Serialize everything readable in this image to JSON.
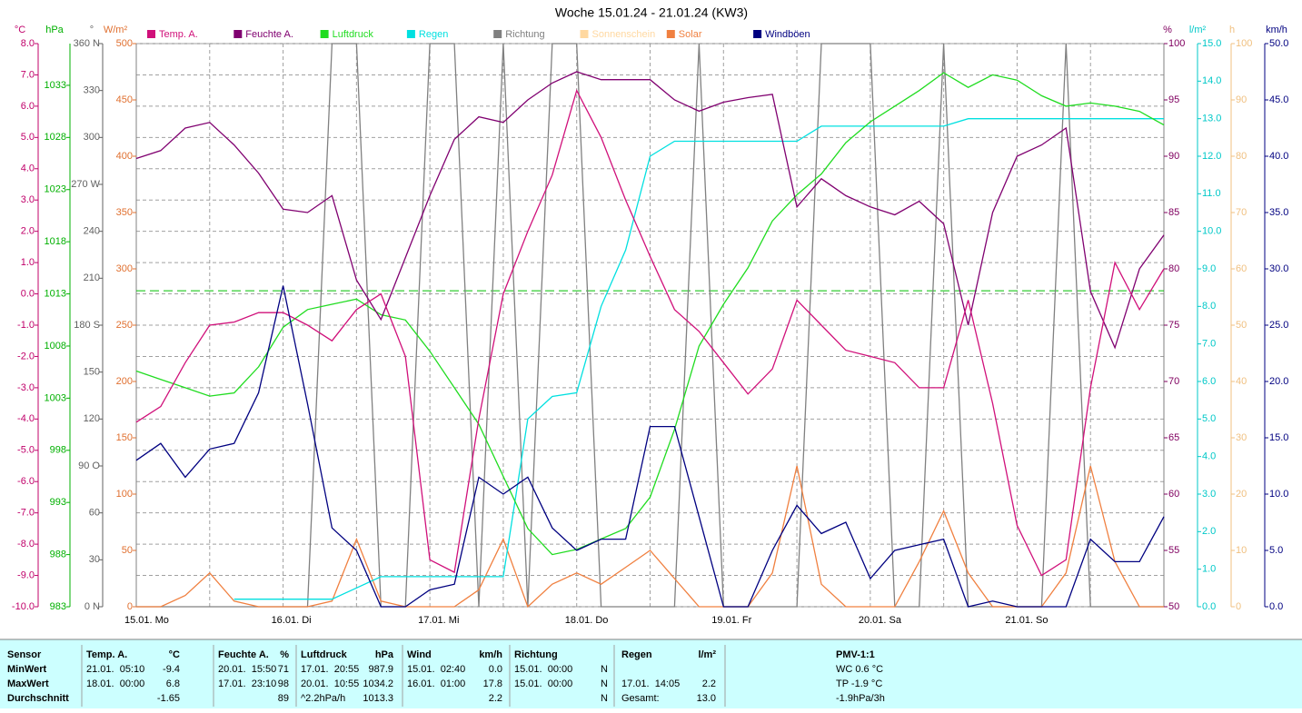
{
  "chart_data": {
    "type": "line",
    "title": "Woche 15.01.24 - 21.01.24 (KW3)",
    "grid": true,
    "categories": [
      "15.01. Mo",
      null,
      null,
      null,
      null,
      null,
      "16.01. Di",
      null,
      null,
      null,
      null,
      null,
      "17.01. Mi",
      null,
      null,
      null,
      null,
      null,
      "18.01. Do",
      null,
      null,
      null,
      null,
      null,
      "19.01. Fr",
      null,
      null,
      null,
      null,
      null,
      "20.01. Sa",
      null,
      null,
      null,
      null,
      null,
      "21.01. So",
      null,
      null,
      null,
      null,
      null,
      null
    ],
    "axes": [
      {
        "label": "°C",
        "color": "#c0006a",
        "lim": [
          -10,
          8
        ],
        "ticks": [
          {
            "value": -10,
            "label": "-10.0"
          },
          {
            "value": -9,
            "label": "-9.0"
          },
          {
            "value": -8,
            "label": "-8.0"
          },
          {
            "value": -7,
            "label": "-7.0"
          },
          {
            "value": -6,
            "label": "-6.0"
          },
          {
            "value": -5,
            "label": "-5.0"
          },
          {
            "value": -4,
            "label": "-4.0"
          },
          {
            "value": -3,
            "label": "-3.0"
          },
          {
            "value": -2,
            "label": "-2.0"
          },
          {
            "value": -1,
            "label": "-1.0"
          },
          {
            "value": 0,
            "label": "0.0"
          },
          {
            "value": 1,
            "label": "1.0"
          },
          {
            "value": 2,
            "label": "2.0"
          },
          {
            "value": 3,
            "label": "3.0"
          },
          {
            "value": 4,
            "label": "4.0"
          },
          {
            "value": 5,
            "label": "5.0"
          },
          {
            "value": 6,
            "label": "6.0"
          },
          {
            "value": 7,
            "label": "7.0"
          },
          {
            "value": 8,
            "label": "8.0"
          }
        ]
      },
      {
        "label": "hPa",
        "color": "#00b000",
        "lim": [
          983,
          1037
        ],
        "ticks": [
          983,
          988,
          993,
          998,
          1003,
          1008,
          1013,
          1018,
          1023,
          1028,
          1033
        ]
      },
      {
        "label": "°",
        "color": "#606060",
        "lim": [
          0,
          360
        ],
        "ticks": [
          {
            "value": 0,
            "label": "0 N"
          },
          30,
          60,
          {
            "value": 90,
            "label": "90 O"
          },
          120,
          150,
          {
            "value": 180,
            "label": "180 S"
          },
          210,
          240,
          {
            "value": 270,
            "label": "270 W"
          },
          300,
          330,
          {
            "value": 360,
            "label": "360 N"
          }
        ]
      },
      {
        "label": "W/m²",
        "color": "#e07030",
        "lim": [
          0,
          500
        ],
        "ticks": [
          0,
          50,
          100,
          150,
          200,
          250,
          300,
          350,
          400,
          450,
          500
        ]
      },
      {
        "label": "%",
        "color": "#800060",
        "lim": [
          50,
          100
        ],
        "ticks": [
          50,
          55,
          60,
          65,
          70,
          75,
          80,
          85,
          90,
          95,
          100
        ]
      },
      {
        "label": "l/m²",
        "color": "#00c8c8",
        "lim": [
          0,
          15
        ],
        "ticks": [
          {
            "value": 0,
            "label": "0.0"
          },
          {
            "value": 1,
            "label": "1.0"
          },
          {
            "value": 2,
            "label": "2.0"
          },
          {
            "value": 3,
            "label": "3.0"
          },
          {
            "value": 4,
            "label": "4.0"
          },
          {
            "value": 5,
            "label": "5.0"
          },
          {
            "value": 6,
            "label": "6.0"
          },
          {
            "value": 7,
            "label": "7.0"
          },
          {
            "value": 8,
            "label": "8.0"
          },
          {
            "value": 9,
            "label": "9.0"
          },
          {
            "value": 10,
            "label": "10.0"
          },
          {
            "value": 11,
            "label": "11.0"
          },
          {
            "value": 12,
            "label": "12.0"
          },
          {
            "value": 13,
            "label": "13.0"
          },
          {
            "value": 14,
            "label": "14.0"
          },
          {
            "value": 15,
            "label": "15.0"
          }
        ]
      },
      {
        "label": "h",
        "color": "#f0c080",
        "lim": [
          0,
          100
        ],
        "ticks": [
          0,
          10,
          20,
          30,
          40,
          50,
          60,
          70,
          80,
          90,
          100
        ]
      },
      {
        "label": "km/h",
        "color": "#000080",
        "lim": [
          0,
          50
        ],
        "ticks": [
          {
            "value": 0,
            "label": "0.0"
          },
          {
            "value": 5,
            "label": "5.0"
          },
          {
            "value": 10,
            "label": "10.0"
          },
          {
            "value": 15,
            "label": "15.0"
          },
          {
            "value": 20,
            "label": "20.0"
          },
          {
            "value": 25,
            "label": "25.0"
          },
          {
            "value": 30,
            "label": "30.0"
          },
          {
            "value": 35,
            "label": "35.0"
          },
          {
            "value": 40,
            "label": "40.0"
          },
          {
            "value": 45,
            "label": "45.0"
          },
          {
            "value": 50,
            "label": "50.0"
          }
        ]
      }
    ],
    "reference_line": {
      "value": 1013.3,
      "axis": "hPa",
      "color": "#00c000"
    },
    "series": [
      {
        "name": "Temp. A.",
        "color": "#d0107a",
        "axis": "°C",
        "values": [
          -4.1,
          -3.6,
          -2.2,
          -1.0,
          -0.9,
          -0.6,
          -0.6,
          -1.0,
          -1.5,
          -0.5,
          0.0,
          -2.0,
          -8.5,
          -8.9,
          -4.0,
          0.0,
          2.0,
          3.8,
          6.5,
          5.0,
          3.0,
          1.2,
          -0.5,
          -1.2,
          -2.2,
          -3.2,
          -2.4,
          -0.2,
          -1.0,
          -1.8,
          -2.0,
          -2.2,
          -3.0,
          -3.0,
          -0.2,
          -3.5,
          -7.4,
          -9.0,
          -8.5,
          -3.0,
          1.0,
          -0.5,
          0.8
        ]
      },
      {
        "name": "Feuchte A.",
        "color": "#800070",
        "axis": "%",
        "values": [
          89.8,
          90.5,
          92.5,
          93.0,
          91.0,
          88.5,
          85.3,
          85.0,
          86.5,
          79.0,
          75.5,
          81.0,
          86.5,
          91.5,
          93.5,
          93.0,
          95.0,
          96.5,
          97.5,
          96.8,
          96.8,
          96.8,
          95.0,
          94.0,
          94.8,
          95.2,
          95.5,
          85.5,
          88.0,
          86.5,
          85.5,
          84.8,
          86.0,
          84.0,
          75.0,
          85.0,
          90.0,
          91.0,
          92.5,
          78.0,
          73.0,
          80.0,
          83.0
        ]
      },
      {
        "name": "Luftdruck",
        "color": "#20dc20",
        "axis": "hPa",
        "values": [
          1005.6,
          1004.8,
          1004.0,
          1003.2,
          1003.5,
          1006.0,
          1009.8,
          1011.5,
          1012.0,
          1012.5,
          1011.0,
          1010.5,
          1007.5,
          1004.0,
          1000.5,
          995.5,
          990.5,
          988.0,
          988.5,
          989.5,
          990.5,
          993.5,
          1000.0,
          1008.0,
          1012.0,
          1015.5,
          1020.0,
          1022.5,
          1024.5,
          1027.5,
          1029.5,
          1031.0,
          1032.5,
          1034.2,
          1032.8,
          1034.0,
          1033.5,
          1032.0,
          1031.0,
          1031.3,
          1031.0,
          1030.5,
          1029.2
        ]
      },
      {
        "name": "Regen",
        "color": "#00e0e0",
        "axis": "l/m²",
        "values": [
          null,
          null,
          null,
          null,
          0.2,
          0.2,
          0.2,
          0.2,
          0.2,
          0.5,
          0.8,
          0.8,
          0.8,
          0.8,
          0.8,
          0.8,
          5.0,
          5.6,
          5.7,
          8.0,
          9.5,
          12.0,
          12.4,
          12.4,
          12.4,
          12.4,
          12.4,
          12.4,
          12.8,
          12.8,
          12.8,
          12.8,
          12.8,
          12.8,
          13.0,
          13.0,
          13.0,
          13.0,
          13.0,
          13.0,
          13.0,
          13.0,
          13.0
        ]
      },
      {
        "name": "Richtung",
        "color": "#808080",
        "axis": "°",
        "values": [
          0,
          0,
          0,
          0,
          0,
          0,
          0,
          0,
          360,
          360,
          0,
          0,
          360,
          360,
          0,
          360,
          0,
          360,
          360,
          0,
          0,
          0,
          0,
          360,
          0,
          0,
          0,
          0,
          360,
          360,
          360,
          0,
          0,
          360,
          0,
          0,
          0,
          0,
          360,
          0,
          0,
          0,
          0
        ]
      },
      {
        "name": "Sonnenschein",
        "color": "#ffd8a0",
        "axis": "h"
      },
      {
        "name": "Solar",
        "color": "#f08040",
        "axis": "W/m²",
        "values": [
          0,
          0,
          10,
          30,
          5,
          0,
          0,
          0,
          5,
          60,
          5,
          0,
          0,
          0,
          15,
          60,
          0,
          20,
          30,
          20,
          35,
          50,
          25,
          0,
          0,
          0,
          30,
          125,
          20,
          0,
          0,
          0,
          40,
          85,
          30,
          0,
          0,
          0,
          30,
          125,
          40,
          0,
          0
        ]
      },
      {
        "name": "Windböen",
        "color": "#000080",
        "axis": "km/h",
        "values": [
          13.0,
          14.5,
          11.5,
          14.0,
          14.5,
          19.0,
          28.5,
          18.0,
          7.0,
          5.0,
          0.0,
          0.0,
          1.5,
          2.0,
          11.5,
          10.0,
          11.5,
          7.0,
          5.0,
          6.0,
          6.0,
          16.0,
          16.0,
          8.0,
          0.0,
          0.0,
          5.0,
          9.0,
          6.5,
          7.5,
          2.5,
          5.0,
          5.5,
          6.0,
          0.0,
          0.5,
          0.0,
          0.0,
          0.0,
          6.0,
          4.0,
          4.0,
          8.0
        ]
      }
    ]
  },
  "table": {
    "rows": [
      [
        "Sensor",
        "Temp. A.",
        "°C",
        "Feuchte A.",
        "%",
        "Luftdruck",
        "hPa",
        "Wind",
        "km/h",
        "Richtung",
        null,
        "Regen",
        "l/m²",
        "PMV-1:1"
      ],
      [
        "MinWert",
        "21.01.  05:10",
        "-9.4",
        "20.01.  15:50",
        "71",
        "17.01.  20:55",
        "987.9",
        "15.01.  02:40",
        "0.0",
        "15.01.  00:00",
        "N",
        null,
        null,
        "WC 0.6 °C"
      ],
      [
        "MaxWert",
        "18.01.  00:00",
        "6.8",
        "17.01.  23:10",
        "98",
        "20.01.  10:55",
        "1034.2",
        "16.01.  01:00",
        "17.8",
        "15.01.  00:00",
        "N",
        "17.01.  14:05",
        "2.2",
        "TP -1.9 °C"
      ],
      [
        "Durchschnitt",
        null,
        "-1.65",
        null,
        "89",
        "^2.2hPa/h",
        "1013.3",
        null,
        "2.2",
        null,
        "N",
        "Gesamt:",
        "13.0",
        "-1.9hPa/3h"
      ]
    ]
  }
}
